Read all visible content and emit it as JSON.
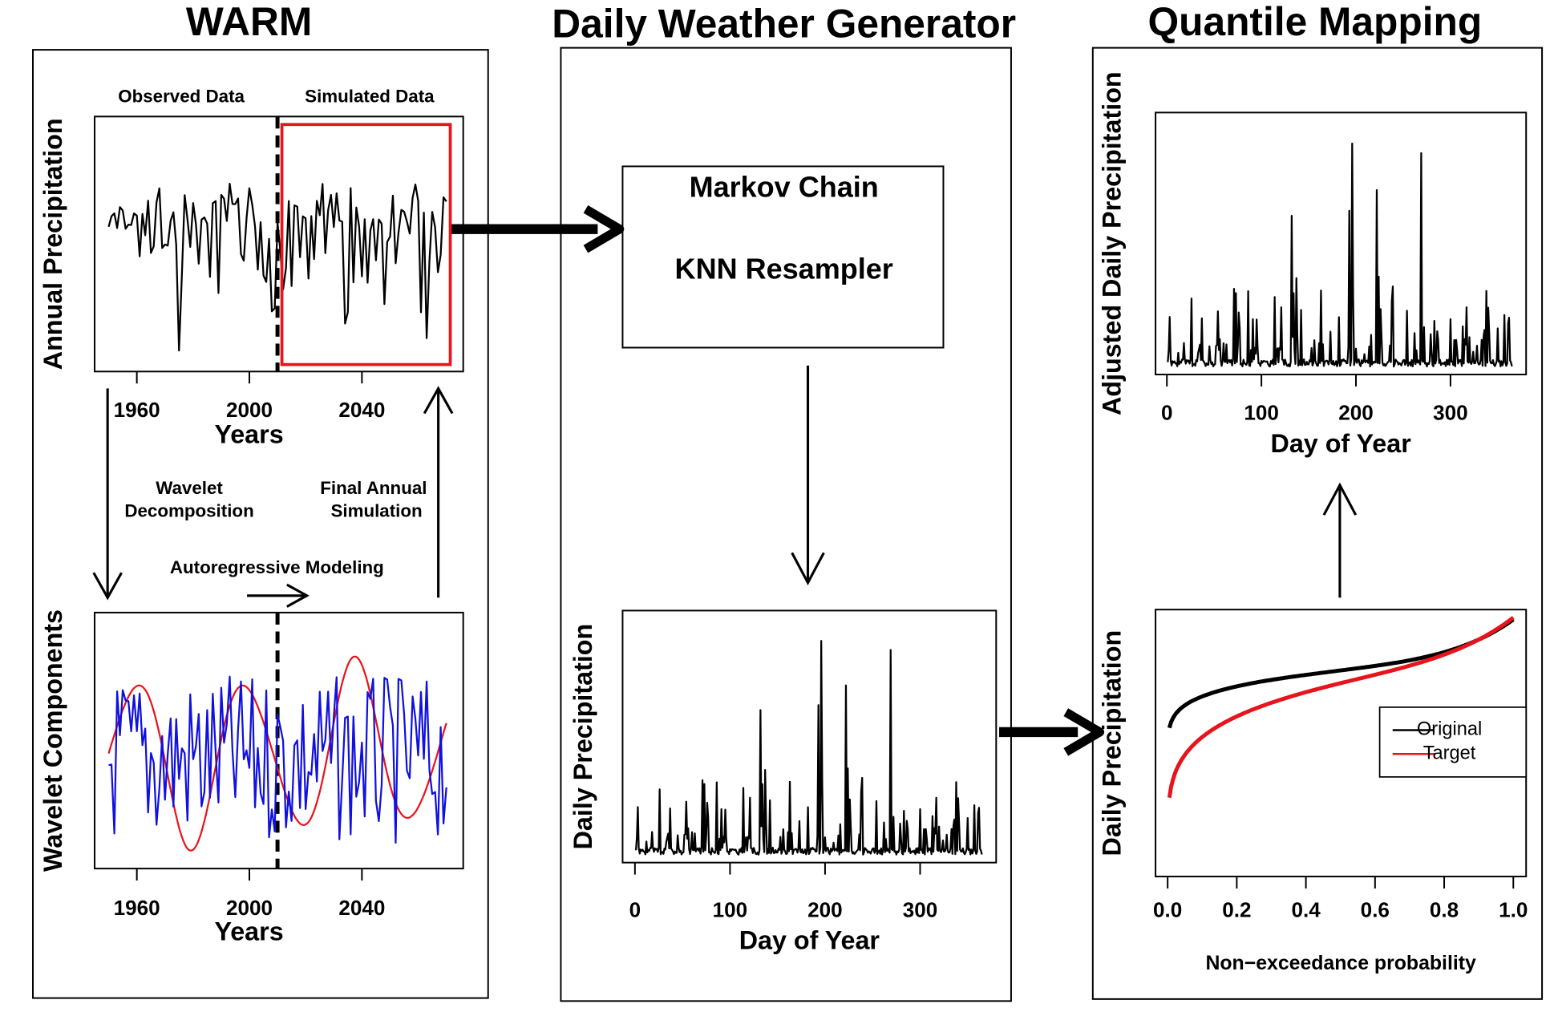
{
  "columns": [
    {
      "title": "WARM"
    },
    {
      "title": "Daily Weather Generator"
    },
    {
      "title": "Quantile Mapping"
    }
  ],
  "plots": [
    {
      "ylabel": "Annual Precipitation",
      "xlabel": "Years",
      "xlim": [
        1945,
        2076
      ],
      "xticks": [
        1960,
        2000,
        2040
      ],
      "annotations": [
        "Observed Data",
        "Simulated Data"
      ]
    },
    {
      "ylabel": "Wavelet Components",
      "xlabel": "Years",
      "xlim": [
        1945,
        2076
      ],
      "xticks": [
        1960,
        2000,
        2040
      ]
    },
    {
      "ylabel": "Daily Precipitation",
      "xlabel": "Day of Year",
      "xlim": [
        -13,
        380
      ],
      "xticks": [
        0,
        100,
        200,
        300
      ]
    },
    {
      "ylabel": "Adjusted Daily Precipitation",
      "xlabel": "Day of Year",
      "xlim": [
        -12,
        380
      ],
      "xticks": [
        0,
        100,
        200,
        300
      ]
    },
    {
      "ylabel": "Daily Precipitation",
      "xlabel": "Non−exceedance probability",
      "xlim": [
        -0.035,
        1.037
      ],
      "xticks": [
        {
          "value": 0,
          "label": "0.0"
        },
        {
          "value": 0.2,
          "label": "0.2"
        },
        {
          "value": 0.4,
          "label": "0.4"
        },
        {
          "value": 0.6,
          "label": "0.6"
        },
        {
          "value": 0.8,
          "label": "0.8"
        },
        {
          "value": 1,
          "label": "1.0"
        }
      ],
      "legend": [
        {
          "name": "Original",
          "color": "#000000"
        },
        {
          "name": "Target",
          "color": "#e8141c"
        }
      ]
    }
  ],
  "warm_steps": {
    "decomposition": [
      "Wavelet",
      "Decomposition"
    ],
    "simulation": [
      "Final Annual",
      "Simulation"
    ],
    "modeling": "Autoregressive Modeling"
  },
  "generator_box": [
    "Markov Chain",
    "KNN Resampler"
  ]
}
